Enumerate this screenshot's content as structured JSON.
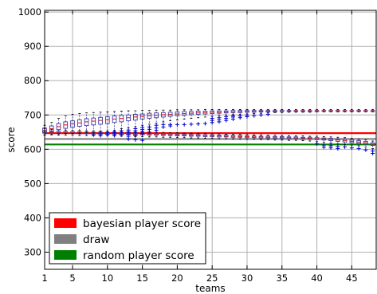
{
  "chart_data": {
    "type": "box",
    "xlabel": "teams",
    "ylabel": "score",
    "xlim": [
      1,
      48.5
    ],
    "ylim": [
      250,
      1005
    ],
    "x_ticks": [
      1,
      5,
      10,
      15,
      20,
      25,
      30,
      35,
      40,
      45
    ],
    "y_ticks": [
      300,
      400,
      500,
      600,
      700,
      800,
      900,
      1000
    ],
    "grid": true,
    "legend_position": "bottom-left",
    "colors": {
      "box": "#3a3aa8",
      "median": "#e02020",
      "whisker": "#3a3aa8",
      "flier": "#0000cc",
      "bayesian": "#ff0000",
      "draw": "#808080",
      "random": "#008000",
      "grid": "#b0b0b0"
    },
    "reference_lines": [
      {
        "name": "bayesian player score",
        "y": 647,
        "color": "#ff0000"
      },
      {
        "name": "draw",
        "y": 630,
        "color": "#808080"
      },
      {
        "name": "random player score",
        "y": 614,
        "color": "#008000"
      }
    ],
    "upper_boxes": [
      {
        "x": 1,
        "q1": 648,
        "median": 655,
        "q3": 662,
        "whislo": 641,
        "whishi": 670,
        "fliers": []
      },
      {
        "x": 2,
        "q1": 652,
        "median": 660,
        "q3": 668,
        "whislo": 643,
        "whishi": 678,
        "fliers": []
      },
      {
        "x": 3,
        "q1": 657,
        "median": 666,
        "q3": 675,
        "whislo": 645,
        "whishi": 690,
        "fliers": []
      },
      {
        "x": 4,
        "q1": 661,
        "median": 671,
        "q3": 680,
        "whislo": 646,
        "whishi": 697,
        "fliers": []
      },
      {
        "x": 5,
        "q1": 664,
        "median": 674,
        "q3": 683,
        "whislo": 646,
        "whishi": 702,
        "fliers": []
      },
      {
        "x": 6,
        "q1": 667,
        "median": 677,
        "q3": 686,
        "whislo": 647,
        "whishi": 704,
        "fliers": []
      },
      {
        "x": 7,
        "q1": 669,
        "median": 680,
        "q3": 689,
        "whislo": 648,
        "whishi": 706,
        "fliers": []
      },
      {
        "x": 8,
        "q1": 671,
        "median": 682,
        "q3": 691,
        "whislo": 648,
        "whishi": 707,
        "fliers": [
          642
        ]
      },
      {
        "x": 9,
        "q1": 673,
        "median": 684,
        "q3": 693,
        "whislo": 650,
        "whishi": 708,
        "fliers": [
          645,
          640
        ]
      },
      {
        "x": 10,
        "q1": 675,
        "median": 686,
        "q3": 695,
        "whislo": 652,
        "whishi": 709,
        "fliers": [
          648,
          643
        ]
      },
      {
        "x": 11,
        "q1": 678,
        "median": 688,
        "q3": 697,
        "whislo": 655,
        "whishi": 710,
        "fliers": [
          650,
          645,
          640
        ]
      },
      {
        "x": 12,
        "q1": 680,
        "median": 690,
        "q3": 699,
        "whislo": 660,
        "whishi": 711,
        "fliers": [
          654,
          648,
          642
        ]
      },
      {
        "x": 13,
        "q1": 683,
        "median": 692,
        "q3": 700,
        "whislo": 663,
        "whishi": 712,
        "fliers": [
          656,
          650,
          644,
          638
        ]
      },
      {
        "x": 14,
        "q1": 685,
        "median": 694,
        "q3": 702,
        "whislo": 666,
        "whishi": 712,
        "fliers": [
          660,
          654,
          648,
          640
        ]
      },
      {
        "x": 15,
        "q1": 688,
        "median": 696,
        "q3": 703,
        "whislo": 670,
        "whishi": 713,
        "fliers": [
          664,
          658,
          652,
          646
        ]
      },
      {
        "x": 16,
        "q1": 690,
        "median": 698,
        "q3": 705,
        "whislo": 673,
        "whishi": 713,
        "fliers": [
          665,
          658,
          650
        ]
      },
      {
        "x": 17,
        "q1": 692,
        "median": 699,
        "q3": 706,
        "whislo": 676,
        "whishi": 714,
        "fliers": [
          670,
          662,
          655
        ]
      },
      {
        "x": 18,
        "q1": 694,
        "median": 701,
        "q3": 707,
        "whislo": 680,
        "whishi": 714,
        "fliers": [
          672,
          665
        ]
      },
      {
        "x": 19,
        "q1": 696,
        "median": 702,
        "q3": 708,
        "whislo": 683,
        "whishi": 714,
        "fliers": [
          672,
          668
        ]
      },
      {
        "x": 20,
        "q1": 698,
        "median": 703,
        "q3": 709,
        "whislo": 686,
        "whishi": 715,
        "fliers": [
          672
        ]
      },
      {
        "x": 21,
        "q1": 699,
        "median": 704,
        "q3": 710,
        "whislo": 688,
        "whishi": 715,
        "fliers": [
          672
        ]
      },
      {
        "x": 22,
        "q1": 701,
        "median": 705,
        "q3": 710,
        "whislo": 690,
        "whishi": 715,
        "fliers": [
          673
        ]
      },
      {
        "x": 23,
        "q1": 702,
        "median": 706,
        "q3": 711,
        "whislo": 692,
        "whishi": 715,
        "fliers": [
          674
        ]
      },
      {
        "x": 24,
        "q1": 703,
        "median": 707,
        "q3": 711,
        "whislo": 694,
        "whishi": 716,
        "fliers": [
          675
        ]
      },
      {
        "x": 25,
        "q1": 704,
        "median": 708,
        "q3": 712,
        "whislo": 696,
        "whishi": 716,
        "fliers": [
          678,
          684,
          690
        ]
      },
      {
        "x": 26,
        "q1": 705,
        "median": 708,
        "q3": 712,
        "whislo": 698,
        "whishi": 716,
        "fliers": [
          680,
          686,
          692
        ]
      },
      {
        "x": 27,
        "q1": 706,
        "median": 709,
        "q3": 712,
        "whislo": 700,
        "whishi": 716,
        "fliers": [
          684,
          690,
          695
        ]
      },
      {
        "x": 28,
        "q1": 707,
        "median": 709,
        "q3": 713,
        "whislo": 701,
        "whishi": 716,
        "fliers": [
          688,
          694,
          698
        ]
      },
      {
        "x": 29,
        "q1": 707,
        "median": 710,
        "q3": 713,
        "whislo": 702,
        "whishi": 716,
        "fliers": [
          692,
          697
        ]
      },
      {
        "x": 30,
        "q1": 708,
        "median": 710,
        "q3": 713,
        "whislo": 703,
        "whishi": 716,
        "fliers": [
          695,
          699
        ]
      },
      {
        "x": 31,
        "q1": 708,
        "median": 710,
        "q3": 713,
        "whislo": 704,
        "whishi": 716,
        "fliers": [
          698
        ]
      },
      {
        "x": 32,
        "q1": 709,
        "median": 711,
        "q3": 713,
        "whislo": 705,
        "whishi": 716,
        "fliers": [
          700
        ]
      },
      {
        "x": 33,
        "q1": 709,
        "median": 711,
        "q3": 713,
        "whislo": 706,
        "whishi": 716,
        "fliers": [
          702
        ]
      },
      {
        "x": 34,
        "q1": 709,
        "median": 711,
        "q3": 713,
        "whislo": 707,
        "whishi": 716,
        "fliers": []
      },
      {
        "x": 35,
        "q1": 710,
        "median": 711,
        "q3": 713,
        "whislo": 707,
        "whishi": 716,
        "fliers": []
      },
      {
        "x": 36,
        "q1": 710,
        "median": 711,
        "q3": 713,
        "whislo": 708,
        "whishi": 716,
        "fliers": []
      },
      {
        "x": 37,
        "q1": 710,
        "median": 712,
        "q3": 713,
        "whislo": 708,
        "whishi": 716,
        "fliers": []
      },
      {
        "x": 38,
        "q1": 710,
        "median": 712,
        "q3": 713,
        "whislo": 708,
        "whishi": 716,
        "fliers": []
      },
      {
        "x": 39,
        "q1": 710,
        "median": 712,
        "q3": 713,
        "whislo": 708,
        "whishi": 716,
        "fliers": []
      },
      {
        "x": 40,
        "q1": 710,
        "median": 712,
        "q3": 713,
        "whislo": 709,
        "whishi": 716,
        "fliers": []
      },
      {
        "x": 41,
        "q1": 711,
        "median": 712,
        "q3": 713,
        "whislo": 709,
        "whishi": 716,
        "fliers": []
      },
      {
        "x": 42,
        "q1": 711,
        "median": 712,
        "q3": 713,
        "whislo": 709,
        "whishi": 716,
        "fliers": []
      },
      {
        "x": 43,
        "q1": 711,
        "median": 712,
        "q3": 713,
        "whislo": 709,
        "whishi": 716,
        "fliers": []
      },
      {
        "x": 44,
        "q1": 711,
        "median": 712,
        "q3": 713,
        "whislo": 709,
        "whishi": 716,
        "fliers": []
      },
      {
        "x": 45,
        "q1": 711,
        "median": 712,
        "q3": 713,
        "whislo": 709,
        "whishi": 716,
        "fliers": []
      },
      {
        "x": 46,
        "q1": 711,
        "median": 712,
        "q3": 713,
        "whislo": 709,
        "whishi": 716,
        "fliers": []
      },
      {
        "x": 47,
        "q1": 711,
        "median": 712,
        "q3": 713,
        "whislo": 709,
        "whishi": 716,
        "fliers": []
      },
      {
        "x": 48,
        "q1": 711,
        "median": 712,
        "q3": 713,
        "whislo": 709,
        "whishi": 716,
        "fliers": []
      }
    ],
    "lower_boxes": [
      {
        "x": 1,
        "q1": 647,
        "median": 650,
        "q3": 654,
        "whislo": 642,
        "whishi": 660,
        "fliers": []
      },
      {
        "x": 2,
        "q1": 647,
        "median": 650,
        "q3": 653,
        "whislo": 642,
        "whishi": 658,
        "fliers": []
      },
      {
        "x": 3,
        "q1": 646,
        "median": 649,
        "q3": 652,
        "whislo": 641,
        "whishi": 657,
        "fliers": []
      },
      {
        "x": 4,
        "q1": 646,
        "median": 649,
        "q3": 652,
        "whislo": 641,
        "whishi": 656,
        "fliers": []
      },
      {
        "x": 5,
        "q1": 646,
        "median": 648,
        "q3": 651,
        "whislo": 641,
        "whishi": 655,
        "fliers": []
      },
      {
        "x": 6,
        "q1": 645,
        "median": 648,
        "q3": 651,
        "whislo": 640,
        "whishi": 655,
        "fliers": []
      },
      {
        "x": 7,
        "q1": 645,
        "median": 648,
        "q3": 650,
        "whislo": 640,
        "whishi": 654,
        "fliers": []
      },
      {
        "x": 8,
        "q1": 645,
        "median": 647,
        "q3": 650,
        "whislo": 640,
        "whishi": 654,
        "fliers": []
      },
      {
        "x": 9,
        "q1": 644,
        "median": 647,
        "q3": 650,
        "whislo": 639,
        "whishi": 653,
        "fliers": []
      },
      {
        "x": 10,
        "q1": 644,
        "median": 647,
        "q3": 649,
        "whislo": 639,
        "whishi": 653,
        "fliers": []
      },
      {
        "x": 11,
        "q1": 644,
        "median": 646,
        "q3": 649,
        "whislo": 639,
        "whishi": 652,
        "fliers": []
      },
      {
        "x": 12,
        "q1": 643,
        "median": 646,
        "q3": 648,
        "whislo": 638,
        "whishi": 652,
        "fliers": []
      },
      {
        "x": 13,
        "q1": 643,
        "median": 645,
        "q3": 648,
        "whislo": 638,
        "whishi": 651,
        "fliers": [
          630
        ]
      },
      {
        "x": 14,
        "q1": 642,
        "median": 645,
        "q3": 647,
        "whislo": 637,
        "whishi": 651,
        "fliers": [
          628
        ]
      },
      {
        "x": 15,
        "q1": 642,
        "median": 644,
        "q3": 647,
        "whislo": 637,
        "whishi": 650,
        "fliers": [
          626
        ]
      },
      {
        "x": 16,
        "q1": 641,
        "median": 644,
        "q3": 646,
        "whislo": 636,
        "whishi": 650,
        "fliers": []
      },
      {
        "x": 17,
        "q1": 641,
        "median": 643,
        "q3": 646,
        "whislo": 636,
        "whishi": 649,
        "fliers": []
      },
      {
        "x": 18,
        "q1": 640,
        "median": 643,
        "q3": 645,
        "whislo": 635,
        "whishi": 649,
        "fliers": []
      },
      {
        "x": 19,
        "q1": 640,
        "median": 642,
        "q3": 645,
        "whislo": 635,
        "whishi": 648,
        "fliers": []
      },
      {
        "x": 20,
        "q1": 639,
        "median": 642,
        "q3": 644,
        "whislo": 634,
        "whishi": 648,
        "fliers": []
      },
      {
        "x": 21,
        "q1": 639,
        "median": 641,
        "q3": 644,
        "whislo": 634,
        "whishi": 647,
        "fliers": []
      },
      {
        "x": 22,
        "q1": 638,
        "median": 641,
        "q3": 643,
        "whislo": 633,
        "whishi": 647,
        "fliers": []
      },
      {
        "x": 23,
        "q1": 638,
        "median": 640,
        "q3": 643,
        "whislo": 633,
        "whishi": 646,
        "fliers": []
      },
      {
        "x": 24,
        "q1": 637,
        "median": 640,
        "q3": 642,
        "whislo": 632,
        "whishi": 646,
        "fliers": []
      },
      {
        "x": 25,
        "q1": 637,
        "median": 639,
        "q3": 642,
        "whislo": 632,
        "whishi": 645,
        "fliers": []
      },
      {
        "x": 26,
        "q1": 636,
        "median": 639,
        "q3": 641,
        "whislo": 631,
        "whishi": 645,
        "fliers": []
      },
      {
        "x": 27,
        "q1": 636,
        "median": 638,
        "q3": 641,
        "whislo": 631,
        "whishi": 644,
        "fliers": []
      },
      {
        "x": 28,
        "q1": 635,
        "median": 638,
        "q3": 640,
        "whislo": 630,
        "whishi": 644,
        "fliers": []
      },
      {
        "x": 29,
        "q1": 635,
        "median": 637,
        "q3": 640,
        "whislo": 630,
        "whishi": 643,
        "fliers": []
      },
      {
        "x": 30,
        "q1": 634,
        "median": 637,
        "q3": 639,
        "whislo": 629,
        "whishi": 643,
        "fliers": []
      },
      {
        "x": 31,
        "q1": 634,
        "median": 636,
        "q3": 639,
        "whislo": 629,
        "whishi": 642,
        "fliers": []
      },
      {
        "x": 32,
        "q1": 633,
        "median": 636,
        "q3": 638,
        "whislo": 628,
        "whishi": 642,
        "fliers": []
      },
      {
        "x": 33,
        "q1": 633,
        "median": 635,
        "q3": 638,
        "whislo": 628,
        "whishi": 641,
        "fliers": []
      },
      {
        "x": 34,
        "q1": 632,
        "median": 635,
        "q3": 637,
        "whislo": 627,
        "whishi": 641,
        "fliers": []
      },
      {
        "x": 35,
        "q1": 632,
        "median": 634,
        "q3": 637,
        "whislo": 627,
        "whishi": 640,
        "fliers": []
      },
      {
        "x": 36,
        "q1": 631,
        "median": 634,
        "q3": 636,
        "whislo": 626,
        "whishi": 640,
        "fliers": []
      },
      {
        "x": 37,
        "q1": 631,
        "median": 633,
        "q3": 636,
        "whislo": 626,
        "whishi": 639,
        "fliers": []
      },
      {
        "x": 38,
        "q1": 630,
        "median": 633,
        "q3": 635,
        "whislo": 625,
        "whishi": 639,
        "fliers": []
      },
      {
        "x": 39,
        "q1": 629,
        "median": 632,
        "q3": 635,
        "whislo": 624,
        "whishi": 638,
        "fliers": []
      },
      {
        "x": 40,
        "q1": 628,
        "median": 631,
        "q3": 634,
        "whislo": 622,
        "whishi": 638,
        "fliers": [
          616
        ]
      },
      {
        "x": 41,
        "q1": 627,
        "median": 630,
        "q3": 633,
        "whislo": 620,
        "whishi": 637,
        "fliers": [
          612,
          606
        ]
      },
      {
        "x": 42,
        "q1": 625,
        "median": 628,
        "q3": 632,
        "whislo": 618,
        "whishi": 636,
        "fliers": [
          610,
          604
        ]
      },
      {
        "x": 43,
        "q1": 623,
        "median": 627,
        "q3": 630,
        "whislo": 616,
        "whishi": 635,
        "fliers": [
          608,
          602
        ]
      },
      {
        "x": 44,
        "q1": 621,
        "median": 625,
        "q3": 629,
        "whislo": 614,
        "whishi": 634,
        "fliers": [
          607
        ]
      },
      {
        "x": 45,
        "q1": 619,
        "median": 623,
        "q3": 627,
        "whislo": 612,
        "whishi": 632,
        "fliers": [
          604
        ]
      },
      {
        "x": 46,
        "q1": 617,
        "median": 621,
        "q3": 625,
        "whislo": 610,
        "whishi": 630,
        "fliers": [
          602
        ]
      },
      {
        "x": 47,
        "q1": 615,
        "median": 619,
        "q3": 623,
        "whislo": 607,
        "whishi": 628,
        "fliers": [
          598
        ]
      },
      {
        "x": 48,
        "q1": 611,
        "median": 615,
        "q3": 619,
        "whislo": 602,
        "whishi": 624,
        "fliers": [
          595,
          588
        ]
      }
    ]
  }
}
